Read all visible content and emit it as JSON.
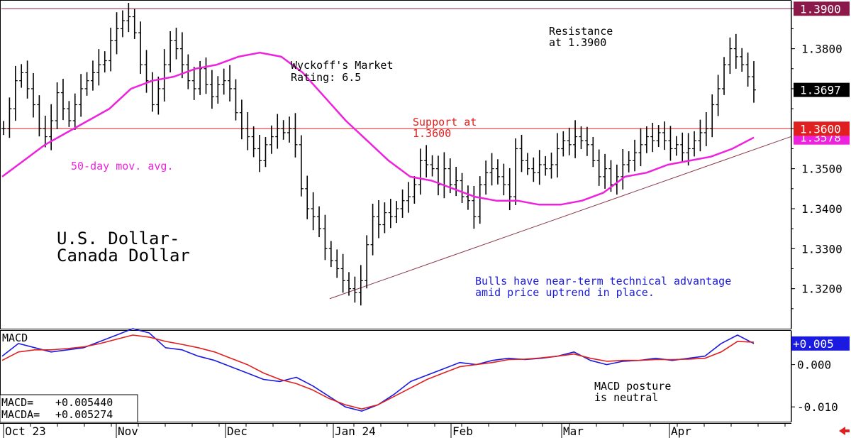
{
  "chart_data": [
    {
      "type": "ohlc",
      "title_lines": [
        "U.S. Dollar-",
        "Canada Dollar"
      ],
      "ylim": [
        1.31,
        1.392
      ],
      "y_ticks": [
        "1.3200",
        "1.3300",
        "1.3400",
        "1.3500",
        "1.3700",
        "1.3800"
      ],
      "x_tick_labels": [
        "Oct 23",
        "Nov",
        "Dec",
        "Jan 24",
        "Feb",
        "Mar",
        "Apr"
      ],
      "rating_lines": [
        "Wyckoff's Market",
        "Rating: 6.5"
      ],
      "resistance": {
        "value": 1.39,
        "label_lines": [
          "Resistance",
          "at 1.3900"
        ],
        "tag": "1.3900",
        "color": "#8b1a4a"
      },
      "support": {
        "value": 1.36,
        "label_lines": [
          "Support at",
          "1.3600"
        ],
        "tag": "1.3600",
        "color": "#e02020"
      },
      "last_price": {
        "value": 1.3697,
        "tag": "1.3697"
      },
      "moving_average": {
        "name": "50-day mov. avg.",
        "last_value": 1.3578,
        "tag": "1.3578",
        "color": "#ee22dd",
        "values": [
          1.348,
          1.352,
          1.356,
          1.359,
          1.362,
          1.365,
          1.37,
          1.372,
          1.373,
          1.375,
          1.376,
          1.378,
          1.379,
          1.378,
          1.374,
          1.368,
          1.362,
          1.357,
          1.352,
          1.348,
          1.347,
          1.345,
          1.343,
          1.342,
          1.342,
          1.341,
          1.341,
          1.342,
          1.344,
          1.348,
          1.349,
          1.351,
          1.352,
          1.353,
          1.355,
          1.3578
        ]
      },
      "trendline": {
        "start": 1.3175,
        "end": 1.358,
        "color": "#8b3a4a"
      },
      "annotation_lines": [
        "Bulls have near-term technical advantage",
        "amid price uptrend in place."
      ],
      "price_closes": [
        1.36,
        1.365,
        1.372,
        1.374,
        1.37,
        1.366,
        1.36,
        1.358,
        1.362,
        1.369,
        1.365,
        1.362,
        1.366,
        1.37,
        1.372,
        1.374,
        1.376,
        1.377,
        1.382,
        1.385,
        1.387,
        1.388,
        1.384,
        1.376,
        1.372,
        1.366,
        1.37,
        1.376,
        1.382,
        1.38,
        1.376,
        1.372,
        1.37,
        1.375,
        1.371,
        1.368,
        1.371,
        1.372,
        1.37,
        1.364,
        1.36,
        1.358,
        1.355,
        1.352,
        1.356,
        1.358,
        1.36,
        1.359,
        1.36,
        1.356,
        1.345,
        1.34,
        1.338,
        1.335,
        1.33,
        1.327,
        1.325,
        1.322,
        1.32,
        1.319,
        1.322,
        1.331,
        1.338,
        1.336,
        1.339,
        1.338,
        1.34,
        1.342,
        1.343,
        1.346,
        1.352,
        1.351,
        1.35,
        1.346,
        1.35,
        1.346,
        1.347,
        1.343,
        1.342,
        1.338,
        1.346,
        1.349,
        1.35,
        1.348,
        1.346,
        1.343,
        1.355,
        1.352,
        1.35,
        1.349,
        1.351,
        1.35,
        1.351,
        1.355,
        1.357,
        1.356,
        1.358,
        1.357,
        1.356,
        1.352,
        1.348,
        1.35,
        1.346,
        1.348,
        1.351,
        1.352,
        1.354,
        1.356,
        1.358,
        1.357,
        1.359,
        1.357,
        1.355,
        1.356,
        1.354,
        1.355,
        1.357,
        1.359,
        1.36,
        1.366,
        1.37,
        1.376,
        1.38,
        1.378,
        1.376,
        1.373,
        1.3697
      ]
    },
    {
      "type": "line",
      "title": "MACD",
      "ylim": [
        -0.0135,
        0.008
      ],
      "y_ticks": [
        "0.000",
        "-0.010"
      ],
      "readout": [
        {
          "label": "MACD=",
          "value": "+0.005440"
        },
        {
          "label": "MACDA=",
          "value": "+0.005274"
        }
      ],
      "current_tag": "+0.005",
      "annotation_lines": [
        "MACD posture",
        "is neutral"
      ],
      "series": [
        {
          "name": "MACD",
          "color": "#1a1ae0",
          "values": [
            0.002,
            0.005,
            0.004,
            0.003,
            0.0035,
            0.004,
            0.0055,
            0.007,
            0.0085,
            0.0075,
            0.004,
            0.0035,
            0.002,
            0.001,
            -0.0005,
            -0.002,
            -0.0035,
            -0.004,
            -0.003,
            -0.005,
            -0.0075,
            -0.01,
            -0.011,
            -0.0095,
            -0.007,
            -0.004,
            -0.0025,
            -0.001,
            0.0005,
            0.0,
            0.001,
            0.0015,
            0.0012,
            0.0015,
            0.002,
            0.003,
            0.001,
            0.0,
            0.0008,
            0.001,
            0.0015,
            0.001,
            0.0015,
            0.002,
            0.005,
            0.007,
            0.005
          ]
        },
        {
          "name": "MACDA",
          "color": "#e02020",
          "values": [
            0.001,
            0.003,
            0.0035,
            0.0035,
            0.0038,
            0.0042,
            0.005,
            0.006,
            0.007,
            0.0065,
            0.0055,
            0.0048,
            0.004,
            0.003,
            0.0015,
            0.0,
            -0.002,
            -0.0035,
            -0.0045,
            -0.006,
            -0.008,
            -0.0095,
            -0.0105,
            -0.0095,
            -0.0075,
            -0.0055,
            -0.0035,
            -0.002,
            -0.0005,
            0.0,
            0.0005,
            0.0012,
            0.0013,
            0.0016,
            0.002,
            0.0025,
            0.0015,
            0.0008,
            0.001,
            0.001,
            0.0012,
            0.0012,
            0.0013,
            0.0015,
            0.003,
            0.0055,
            0.0053
          ]
        }
      ]
    }
  ]
}
